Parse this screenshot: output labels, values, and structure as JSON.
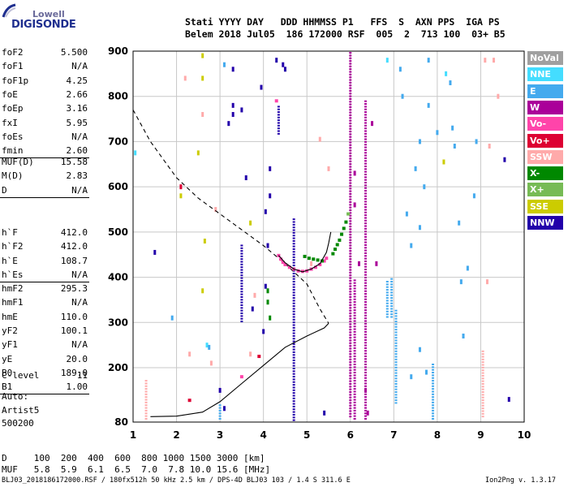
{
  "logo": {
    "line1": "Lowell",
    "line2": "DIGISONDE"
  },
  "header": {
    "row1": "Stati YYYY DAY   DDD HHMMSS P1   FFS  S  AXN PPS  IGA PS",
    "row2": "Belem 2018 Jul05  186 172000 RSF  005  2  713 100  03+ B5"
  },
  "params": {
    "group1": [
      {
        "name": "foF2",
        "value": "5.500"
      },
      {
        "name": "foF1",
        "value": "N/A"
      },
      {
        "name": "foF1p",
        "value": "4.25"
      },
      {
        "name": "foE",
        "value": "2.66"
      },
      {
        "name": "foEp",
        "value": "3.16"
      },
      {
        "name": "fxI",
        "value": "5.95"
      },
      {
        "name": "foEs",
        "value": "N/A"
      },
      {
        "name": "fmin",
        "value": "2.60"
      }
    ],
    "group2": [
      {
        "name": "MUF(D)",
        "value": "15.58"
      },
      {
        "name": "M(D)",
        "value": "2.83"
      },
      {
        "name": "D",
        "value": "N/A"
      }
    ],
    "group3": [
      {
        "name": "h`F",
        "value": "412.0"
      },
      {
        "name": "h`F2",
        "value": "412.0"
      },
      {
        "name": "h`E",
        "value": "108.7"
      },
      {
        "name": "h`Es",
        "value": "N/A"
      }
    ],
    "group4": [
      {
        "name": "hmF2",
        "value": "295.3"
      },
      {
        "name": "hmF1",
        "value": "N/A"
      },
      {
        "name": "hmE",
        "value": "110.0"
      },
      {
        "name": "yF2",
        "value": "100.1"
      },
      {
        "name": "yF1",
        "value": "N/A"
      },
      {
        "name": "yE",
        "value": "20.0"
      },
      {
        "name": "B0",
        "value": "189.0"
      },
      {
        "name": "B1",
        "value": "1.00"
      }
    ],
    "group5": [
      {
        "name": "C-level",
        "value": "11"
      }
    ],
    "auto": [
      "Auto:",
      "Artist5",
      "500200"
    ]
  },
  "legend": [
    {
      "label": "NoVal",
      "color": "#a0a0a0"
    },
    {
      "label": "NNE",
      "color": "#44ddff"
    },
    {
      "label": "E",
      "color": "#44aaee"
    },
    {
      "label": "W",
      "color": "#aa0099"
    },
    {
      "label": "Vo-",
      "color": "#ff44aa"
    },
    {
      "label": "Vo+",
      "color": "#dd0033"
    },
    {
      "label": "SSW",
      "color": "#ffaaaa"
    },
    {
      "label": "X-",
      "color": "#008800"
    },
    {
      "label": "X+",
      "color": "#77bb55"
    },
    {
      "label": "SSE",
      "color": "#cccc00"
    },
    {
      "label": "NNW",
      "color": "#2200aa"
    }
  ],
  "bottom_table": {
    "row1": "D     100  200  400  600  800 1000 1500 3000 [km]",
    "row2": "MUF   5.8  5.9  6.1  6.5  7.0  7.8 10.0 15.6 [MHz]"
  },
  "footer": {
    "left": "BLJ03_2018186172000.RSF / 180fx512h 50 kHz 2.5 km / DPS-4D BLJ03 103 / 1.4 S 311.6 E",
    "right": "Ion2Png v. 1.3.17"
  },
  "chart_data": {
    "type": "scatter",
    "xlim": [
      1,
      10
    ],
    "ylim": [
      80,
      900
    ],
    "xticks": [
      1,
      2,
      3,
      4,
      5,
      6,
      7,
      8,
      9,
      10
    ],
    "yticks": [
      80,
      200,
      300,
      400,
      500,
      600,
      700,
      800,
      900
    ],
    "grid": true,
    "dashed_profile": [
      [
        1.0,
        770
      ],
      [
        1.4,
        700
      ],
      [
        2.0,
        620
      ],
      [
        2.5,
        575
      ],
      [
        3.0,
        540
      ],
      [
        3.5,
        505
      ],
      [
        4.0,
        470
      ],
      [
        4.5,
        430
      ],
      [
        5.0,
        385
      ],
      [
        5.3,
        330
      ],
      [
        5.5,
        298
      ]
    ],
    "solid_profile": [
      [
        1.4,
        92
      ],
      [
        2.0,
        93
      ],
      [
        2.6,
        102
      ],
      [
        3.0,
        125
      ],
      [
        3.5,
        165
      ],
      [
        4.0,
        205
      ],
      [
        4.5,
        245
      ],
      [
        5.0,
        270
      ],
      [
        5.4,
        288
      ],
      [
        5.5,
        298
      ]
    ],
    "trace_curve": [
      [
        4.35,
        448
      ],
      [
        4.5,
        432
      ],
      [
        4.7,
        418
      ],
      [
        4.9,
        412
      ],
      [
        5.1,
        418
      ],
      [
        5.3,
        430
      ],
      [
        5.45,
        455
      ],
      [
        5.5,
        475
      ],
      [
        5.55,
        500
      ]
    ],
    "trace_points": [
      {
        "f": 4.35,
        "h": 448,
        "c": "Vo-"
      },
      {
        "f": 4.4,
        "h": 440,
        "c": "Vo-"
      },
      {
        "f": 4.45,
        "h": 433,
        "c": "Vo-"
      },
      {
        "f": 4.5,
        "h": 428,
        "c": "Vo-"
      },
      {
        "f": 4.6,
        "h": 422,
        "c": "Vo-"
      },
      {
        "f": 4.7,
        "h": 418,
        "c": "Vo-"
      },
      {
        "f": 4.8,
        "h": 414,
        "c": "Vo-"
      },
      {
        "f": 4.9,
        "h": 413,
        "c": "Vo-"
      },
      {
        "f": 5.0,
        "h": 414,
        "c": "Vo-"
      },
      {
        "f": 5.1,
        "h": 418,
        "c": "Vo-"
      },
      {
        "f": 5.2,
        "h": 422,
        "c": "Vo-"
      },
      {
        "f": 5.3,
        "h": 428,
        "c": "Vo-"
      },
      {
        "f": 5.4,
        "h": 436,
        "c": "Vo-"
      },
      {
        "f": 5.45,
        "h": 442,
        "c": "Vo-"
      },
      {
        "f": 4.95,
        "h": 446,
        "c": "X-"
      },
      {
        "f": 5.05,
        "h": 442,
        "c": "X-"
      },
      {
        "f": 5.15,
        "h": 440,
        "c": "X-"
      },
      {
        "f": 5.25,
        "h": 438,
        "c": "X-"
      },
      {
        "f": 5.35,
        "h": 436,
        "c": "X-"
      },
      {
        "f": 5.6,
        "h": 452,
        "c": "X-"
      },
      {
        "f": 5.65,
        "h": 462,
        "c": "X-"
      },
      {
        "f": 5.7,
        "h": 472,
        "c": "X-"
      },
      {
        "f": 5.75,
        "h": 482,
        "c": "X-"
      },
      {
        "f": 5.8,
        "h": 495,
        "c": "X-"
      },
      {
        "f": 5.85,
        "h": 508,
        "c": "X-"
      },
      {
        "f": 5.9,
        "h": 522,
        "c": "X-"
      },
      {
        "f": 5.95,
        "h": 540,
        "c": "X+"
      },
      {
        "f": 4.3,
        "h": 790,
        "c": "Vo-"
      },
      {
        "f": 2.3,
        "h": 128,
        "c": "Vo+"
      },
      {
        "f": 3.9,
        "h": 225,
        "c": "Vo+"
      },
      {
        "f": 3.5,
        "h": 180,
        "c": "Vo-"
      }
    ],
    "columns": [
      {
        "f": 6.0,
        "h1": 90,
        "h2": 900,
        "c": "W"
      },
      {
        "f": 6.35,
        "h1": 85,
        "h2": 790,
        "c": "W"
      },
      {
        "f": 4.7,
        "h1": 82,
        "h2": 530,
        "c": "NNW"
      },
      {
        "f": 4.35,
        "h1": 715,
        "h2": 780,
        "c": "NNW"
      },
      {
        "f": 3.5,
        "h1": 300,
        "h2": 470,
        "c": "NNW"
      },
      {
        "f": 6.85,
        "h1": 310,
        "h2": 390,
        "c": "E"
      },
      {
        "f": 6.95,
        "h1": 310,
        "h2": 395,
        "c": "E"
      },
      {
        "f": 9.05,
        "h1": 90,
        "h2": 240,
        "c": "SSW"
      },
      {
        "f": 1.3,
        "h1": 85,
        "h2": 175,
        "c": "SSW"
      },
      {
        "f": 7.9,
        "h1": 85,
        "h2": 210,
        "c": "E"
      },
      {
        "f": 7.05,
        "h1": 120,
        "h2": 330,
        "c": "E"
      },
      {
        "f": 6.1,
        "h1": 85,
        "h2": 395,
        "c": "W"
      },
      {
        "f": 3.0,
        "h1": 85,
        "h2": 120,
        "c": "E"
      }
    ],
    "scatter": [
      {
        "f": 1.05,
        "h": 675,
        "c": "NNE"
      },
      {
        "f": 1.5,
        "h": 455,
        "c": "NNW"
      },
      {
        "f": 1.9,
        "h": 310,
        "c": "E"
      },
      {
        "f": 2.1,
        "h": 600,
        "c": "Vo+"
      },
      {
        "f": 2.1,
        "h": 580,
        "c": "SSE"
      },
      {
        "f": 2.2,
        "h": 840,
        "c": "SSW"
      },
      {
        "f": 2.3,
        "h": 230,
        "c": "SSW"
      },
      {
        "f": 2.5,
        "h": 675,
        "c": "SSE"
      },
      {
        "f": 2.6,
        "h": 890,
        "c": "SSE"
      },
      {
        "f": 2.6,
        "h": 840,
        "c": "SSE"
      },
      {
        "f": 2.6,
        "h": 760,
        "c": "SSW"
      },
      {
        "f": 2.65,
        "h": 480,
        "c": "SSE"
      },
      {
        "f": 2.6,
        "h": 370,
        "c": "SSE"
      },
      {
        "f": 2.8,
        "h": 210,
        "c": "SSW"
      },
      {
        "f": 2.9,
        "h": 550,
        "c": "SSW"
      },
      {
        "f": 3.1,
        "h": 870,
        "c": "E"
      },
      {
        "f": 3.2,
        "h": 740,
        "c": "NNW"
      },
      {
        "f": 3.3,
        "h": 860,
        "c": "NNW"
      },
      {
        "f": 3.3,
        "h": 780,
        "c": "NNW"
      },
      {
        "f": 3.3,
        "h": 760,
        "c": "NNW"
      },
      {
        "f": 3.5,
        "h": 770,
        "c": "NNW"
      },
      {
        "f": 3.6,
        "h": 620,
        "c": "NNW"
      },
      {
        "f": 3.7,
        "h": 520,
        "c": "SSE"
      },
      {
        "f": 3.7,
        "h": 230,
        "c": "SSW"
      },
      {
        "f": 3.75,
        "h": 330,
        "c": "NNW"
      },
      {
        "f": 3.8,
        "h": 360,
        "c": "SSW"
      },
      {
        "f": 3.95,
        "h": 820,
        "c": "NNW"
      },
      {
        "f": 4.0,
        "h": 280,
        "c": "NNW"
      },
      {
        "f": 4.05,
        "h": 545,
        "c": "NNW"
      },
      {
        "f": 4.05,
        "h": 380,
        "c": "NNW"
      },
      {
        "f": 4.1,
        "h": 470,
        "c": "NNW"
      },
      {
        "f": 4.1,
        "h": 370,
        "c": "X-"
      },
      {
        "f": 4.15,
        "h": 640,
        "c": "NNW"
      },
      {
        "f": 4.15,
        "h": 580,
        "c": "NNW"
      },
      {
        "f": 4.1,
        "h": 345,
        "c": "X-"
      },
      {
        "f": 4.15,
        "h": 310,
        "c": "X-"
      },
      {
        "f": 4.45,
        "h": 870,
        "c": "NNW"
      },
      {
        "f": 4.5,
        "h": 860,
        "c": "NNW"
      },
      {
        "f": 4.3,
        "h": 880,
        "c": "NNW"
      },
      {
        "f": 5.3,
        "h": 705,
        "c": "SSW"
      },
      {
        "f": 5.1,
        "h": 430,
        "c": "SSW"
      },
      {
        "f": 5.5,
        "h": 640,
        "c": "SSW"
      },
      {
        "f": 5.4,
        "h": 100,
        "c": "NNW"
      },
      {
        "f": 6.1,
        "h": 630,
        "c": "W"
      },
      {
        "f": 6.1,
        "h": 560,
        "c": "W"
      },
      {
        "f": 6.2,
        "h": 430,
        "c": "W"
      },
      {
        "f": 6.35,
        "h": 150,
        "c": "W"
      },
      {
        "f": 6.4,
        "h": 100,
        "c": "W"
      },
      {
        "f": 6.5,
        "h": 740,
        "c": "W"
      },
      {
        "f": 6.6,
        "h": 430,
        "c": "W"
      },
      {
        "f": 6.85,
        "h": 880,
        "c": "NNE"
      },
      {
        "f": 7.15,
        "h": 860,
        "c": "E"
      },
      {
        "f": 7.2,
        "h": 800,
        "c": "E"
      },
      {
        "f": 7.3,
        "h": 540,
        "c": "E"
      },
      {
        "f": 7.4,
        "h": 470,
        "c": "E"
      },
      {
        "f": 7.5,
        "h": 640,
        "c": "E"
      },
      {
        "f": 7.6,
        "h": 700,
        "c": "E"
      },
      {
        "f": 7.6,
        "h": 510,
        "c": "E"
      },
      {
        "f": 7.7,
        "h": 600,
        "c": "E"
      },
      {
        "f": 7.8,
        "h": 780,
        "c": "E"
      },
      {
        "f": 7.8,
        "h": 880,
        "c": "E"
      },
      {
        "f": 7.75,
        "h": 190,
        "c": "E"
      },
      {
        "f": 8.0,
        "h": 720,
        "c": "E"
      },
      {
        "f": 8.2,
        "h": 850,
        "c": "NNE"
      },
      {
        "f": 8.3,
        "h": 830,
        "c": "E"
      },
      {
        "f": 8.35,
        "h": 730,
        "c": "E"
      },
      {
        "f": 8.4,
        "h": 690,
        "c": "E"
      },
      {
        "f": 8.5,
        "h": 520,
        "c": "E"
      },
      {
        "f": 8.55,
        "h": 390,
        "c": "E"
      },
      {
        "f": 8.6,
        "h": 270,
        "c": "E"
      },
      {
        "f": 8.7,
        "h": 420,
        "c": "E"
      },
      {
        "f": 8.85,
        "h": 580,
        "c": "E"
      },
      {
        "f": 8.9,
        "h": 700,
        "c": "E"
      },
      {
        "f": 9.1,
        "h": 880,
        "c": "SSW"
      },
      {
        "f": 9.15,
        "h": 390,
        "c": "SSW"
      },
      {
        "f": 9.2,
        "h": 690,
        "c": "SSW"
      },
      {
        "f": 9.3,
        "h": 880,
        "c": "SSW"
      },
      {
        "f": 9.4,
        "h": 800,
        "c": "SSW"
      },
      {
        "f": 9.55,
        "h": 660,
        "c": "NNW"
      },
      {
        "f": 9.65,
        "h": 130,
        "c": "NNW"
      },
      {
        "f": 8.15,
        "h": 655,
        "c": "SSE"
      },
      {
        "f": 2.7,
        "h": 250,
        "c": "NNE"
      },
      {
        "f": 2.75,
        "h": 245,
        "c": "E"
      },
      {
        "f": 3.0,
        "h": 150,
        "c": "NNW"
      },
      {
        "f": 3.1,
        "h": 110,
        "c": "NNW"
      },
      {
        "f": 7.6,
        "h": 240,
        "c": "E"
      },
      {
        "f": 7.4,
        "h": 180,
        "c": "E"
      }
    ]
  }
}
